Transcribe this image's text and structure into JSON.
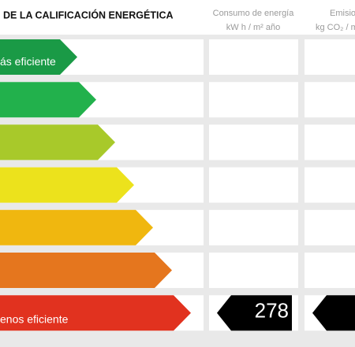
{
  "header": {
    "title": "DE LA CALIFICACIÓN ENERGÉTICA",
    "consumption": [
      "Consumo de energía",
      "kW h / m² año"
    ],
    "emissions": [
      "Emisio",
      "kg CO₂ / m"
    ]
  },
  "scale": {
    "top_label": "ás eficiente",
    "bottom_label": "enos eficiente",
    "bar_colors": [
      "#1a9a46",
      "#22b14c",
      "#a8c92a",
      "#ece21c",
      "#f0b70f",
      "#e5761e",
      "#e1321f"
    ]
  },
  "rating": {
    "consumption": 278
  }
}
